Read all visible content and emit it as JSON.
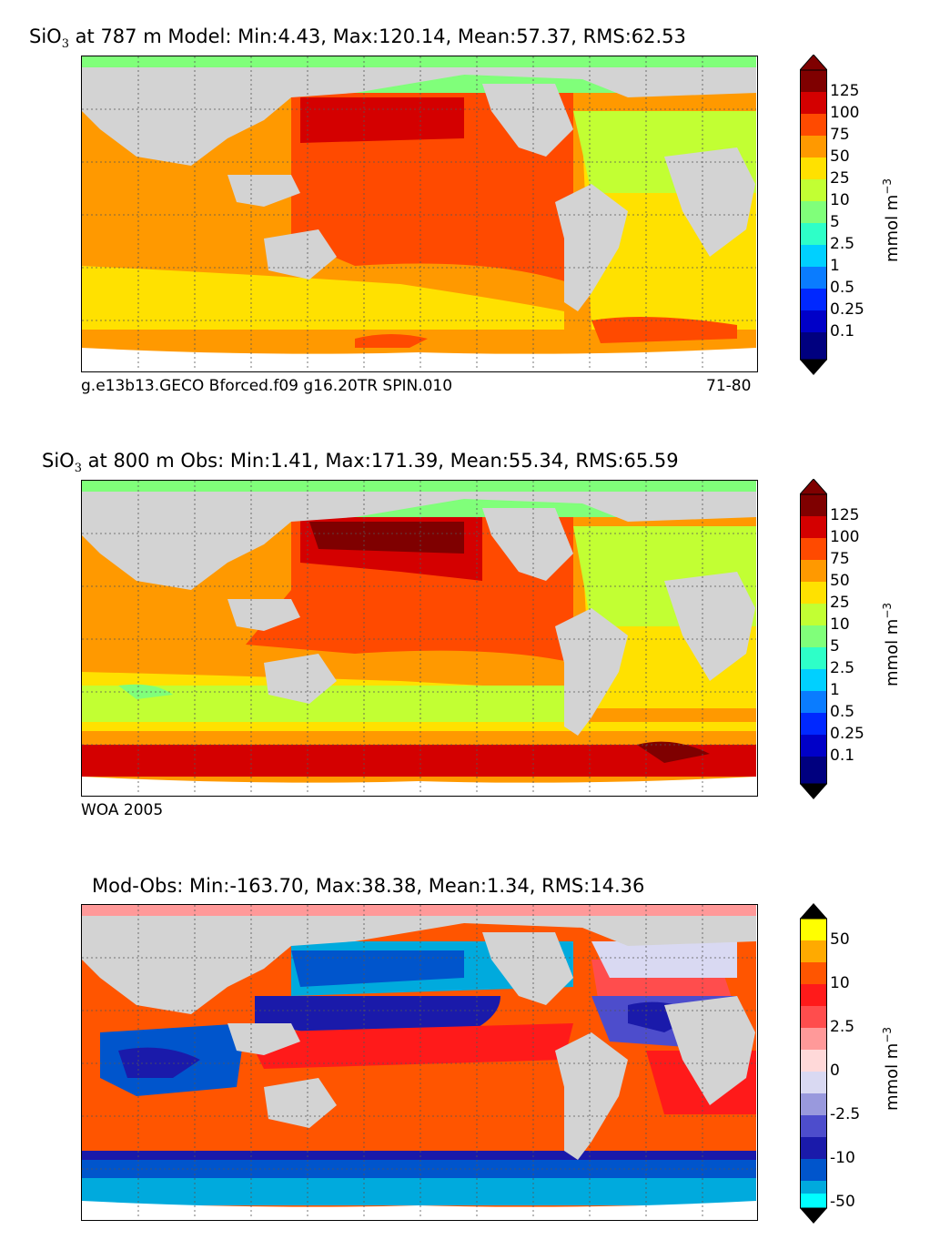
{
  "panels": [
    {
      "id": "model",
      "title_prefix": "SiO",
      "title_sub": "3",
      "title_rest": " at 787 m Model: Min:4.43, Max:120.14, Mean:57.37, RMS:62.53",
      "caption_left": "g.e13b13.GECO Bforced.f09 g16.20TR SPIN.010",
      "caption_right": "71-80",
      "colorbar": {
        "ticks": [
          "125",
          "100",
          "75",
          "50",
          "25",
          "10",
          "5",
          "2.5",
          "1",
          "0.5",
          "0.25",
          "0.1"
        ],
        "colors": [
          "#7f0000",
          "#d40000",
          "#ff4a00",
          "#ff9900",
          "#ffe100",
          "#c2ff33",
          "#80ff7a",
          "#2eff c8",
          "#00d0ff",
          "#0a7cff",
          "#0028ff",
          "#0000c8",
          "#00007f"
        ],
        "unit": "mmol m",
        "unit_sup": "−3"
      }
    },
    {
      "id": "obs",
      "title_prefix": "SiO",
      "title_sub": "3",
      "title_rest": " at 800 m Obs: Min:1.41, Max:171.39, Mean:55.34, RMS:65.59",
      "caption_left": "WOA 2005",
      "caption_right": "",
      "colorbar": {
        "ticks": [
          "125",
          "100",
          "75",
          "50",
          "25",
          "10",
          "5",
          "2.5",
          "1",
          "0.5",
          "0.25",
          "0.1"
        ],
        "unit": "mmol m",
        "unit_sup": "−3"
      }
    },
    {
      "id": "diff",
      "title_prefix": "",
      "title_sub": "",
      "title_rest": "Mod-Obs: Min:-163.70, Max:38.38, Mean:1.34, RMS:14.36",
      "caption_left": "",
      "caption_right": "",
      "colorbar": {
        "ticks": [
          "50",
          "10",
          "2.5",
          "0",
          "-2.5",
          "-10",
          "-50"
        ],
        "unit": "mmol m",
        "unit_sup": "−3"
      }
    }
  ],
  "colors": {
    "land": "#d3d3d3",
    "ice": "#ffffff",
    "seq_dark_to_light": [
      "#7f0000",
      "#d40000",
      "#ff4a00",
      "#ff9900",
      "#ffe100",
      "#c2ff33",
      "#80ff7a",
      "#2effc8",
      "#00d0ff",
      "#0a7cff",
      "#0028ff",
      "#0000c8",
      "#00007f"
    ],
    "div_top_to_bottom": [
      "#ffff00",
      "#ffaa00",
      "#ff5500",
      "#ff1a1a",
      "#ff4d4d",
      "#ff9999",
      "#ffd9d9",
      "#d9d9f2",
      "#9999dd",
      "#4d4dcc",
      "#1a1aaa",
      "#0055cc",
      "#00aadd",
      "#00ffff"
    ]
  }
}
